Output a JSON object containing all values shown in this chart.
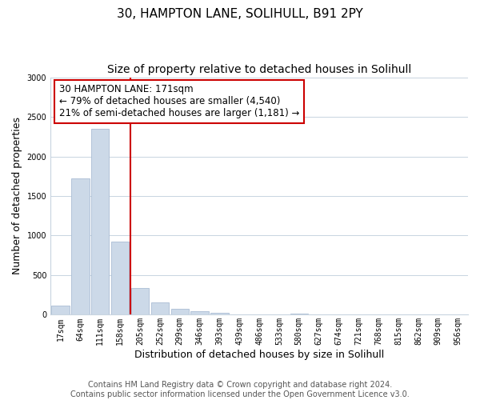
{
  "title_line1": "30, HAMPTON LANE, SOLIHULL, B91 2PY",
  "title_line2": "Size of property relative to detached houses in Solihull",
  "xlabel": "Distribution of detached houses by size in Solihull",
  "ylabel": "Number of detached properties",
  "bar_labels": [
    "17sqm",
    "64sqm",
    "111sqm",
    "158sqm",
    "205sqm",
    "252sqm",
    "299sqm",
    "346sqm",
    "393sqm",
    "439sqm",
    "486sqm",
    "533sqm",
    "580sqm",
    "627sqm",
    "674sqm",
    "721sqm",
    "768sqm",
    "815sqm",
    "862sqm",
    "909sqm",
    "956sqm"
  ],
  "bar_values": [
    120,
    1720,
    2350,
    920,
    340,
    155,
    80,
    40,
    25,
    5,
    3,
    2,
    18,
    2,
    1,
    1,
    1,
    1,
    1,
    1,
    1
  ],
  "bar_color": "#ccd9e8",
  "bar_edge_color": "#aabdd4",
  "vline_color": "#cc0000",
  "annotation_text": "30 HAMPTON LANE: 171sqm\n← 79% of detached houses are smaller (4,540)\n21% of semi-detached houses are larger (1,181) →",
  "annotation_box_color": "#ffffff",
  "annotation_box_edge": "#cc0000",
  "ylim": [
    0,
    3000
  ],
  "yticks": [
    0,
    500,
    1000,
    1500,
    2000,
    2500,
    3000
  ],
  "footer_line1": "Contains HM Land Registry data © Crown copyright and database right 2024.",
  "footer_line2": "Contains public sector information licensed under the Open Government Licence v3.0.",
  "bg_color": "#ffffff",
  "grid_color": "#c8d4e0",
  "title_fontsize": 11,
  "subtitle_fontsize": 10,
  "axis_label_fontsize": 9,
  "tick_fontsize": 7,
  "annotation_fontsize": 8.5,
  "footer_fontsize": 7
}
